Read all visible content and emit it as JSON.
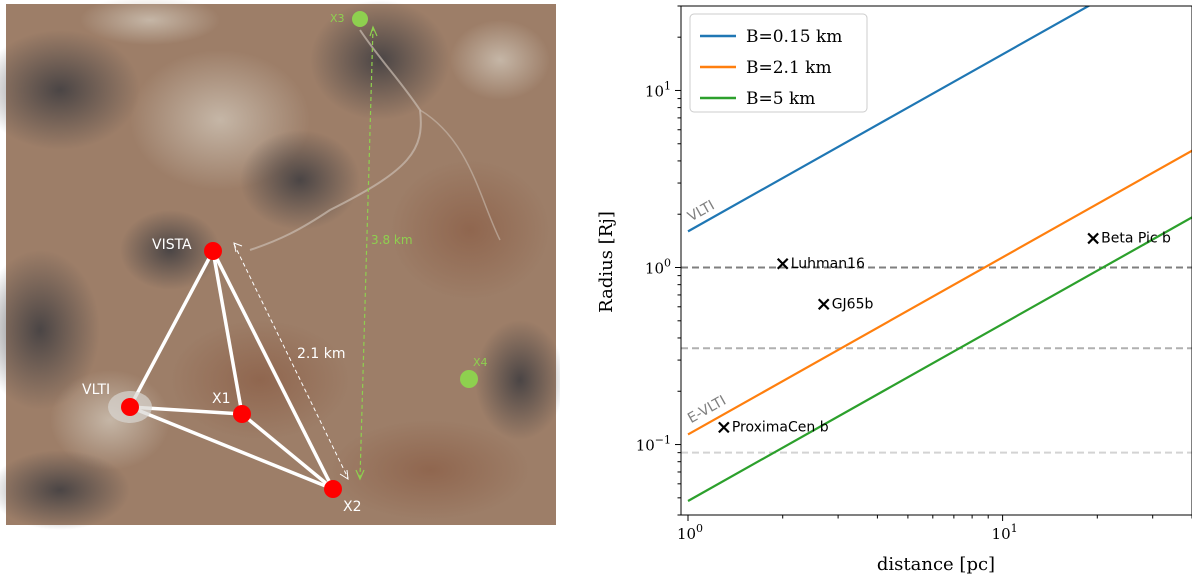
{
  "map": {
    "sites": [
      {
        "label": "VISTA",
        "kind": "station",
        "color": "#ff0000"
      },
      {
        "label": "VLTI",
        "kind": "station",
        "color": "#ff0000"
      },
      {
        "label": "X1",
        "kind": "station",
        "color": "#ff0000"
      },
      {
        "label": "X2",
        "kind": "station",
        "color": "#ff0000"
      },
      {
        "label": "X3",
        "kind": "candidate",
        "color": "#8ed04f"
      },
      {
        "label": "X4",
        "kind": "candidate",
        "color": "#8ed04f"
      }
    ],
    "baselines": [
      {
        "label": "2.1 km",
        "from": "VISTA",
        "to": "X2",
        "color": "#ffffff"
      },
      {
        "label": "3.8 km",
        "from": "X3",
        "to": "X2",
        "color": "#8ed04f"
      }
    ]
  },
  "chart_data": {
    "type": "line",
    "xlabel": "distance [pc]",
    "ylabel": "Radius [Rj]",
    "xscale": "log",
    "yscale": "log",
    "xlim": [
      0.95,
      40
    ],
    "ylim": [
      0.04,
      30
    ],
    "xticks": [
      {
        "value": 1,
        "label": "10^0"
      },
      {
        "value": 10,
        "label": "10^1"
      }
    ],
    "yticks": [
      {
        "value": 0.1,
        "label": "10^-1"
      },
      {
        "value": 1,
        "label": "10^0"
      },
      {
        "value": 10,
        "label": "10^1"
      }
    ],
    "legend_position": "top-left",
    "series": [
      {
        "name": "B=0.15 km",
        "color": "#1f77b4",
        "x": [
          1,
          40
        ],
        "y": [
          1.6,
          64
        ]
      },
      {
        "name": "B=2.1 km",
        "color": "#ff7f0e",
        "x": [
          1,
          40
        ],
        "y": [
          0.114,
          4.57
        ]
      },
      {
        "name": "B=5 km",
        "color": "#2ca02c",
        "x": [
          1,
          40
        ],
        "y": [
          0.048,
          1.92
        ]
      }
    ],
    "hlines": [
      {
        "y": 1.0,
        "color": "#7f7f7f"
      },
      {
        "y": 0.35,
        "color": "#b0b0b0"
      },
      {
        "y": 0.09,
        "color": "#d3d3d3"
      }
    ],
    "line_labels": [
      {
        "text": "VLTI",
        "x": 1.0,
        "y": 1.72,
        "color": "#7f7f7f"
      },
      {
        "text": "E-VLTI",
        "x": 1.0,
        "y": 0.125,
        "color": "#7f7f7f"
      }
    ],
    "points": [
      {
        "name": "Luhman16",
        "x": 2.0,
        "y": 1.05
      },
      {
        "name": "GJ65b",
        "x": 2.7,
        "y": 0.62
      },
      {
        "name": "Beta Pic b",
        "x": 19.4,
        "y": 1.46
      },
      {
        "name": "ProximaCen b",
        "x": 1.3,
        "y": 0.125
      }
    ]
  }
}
